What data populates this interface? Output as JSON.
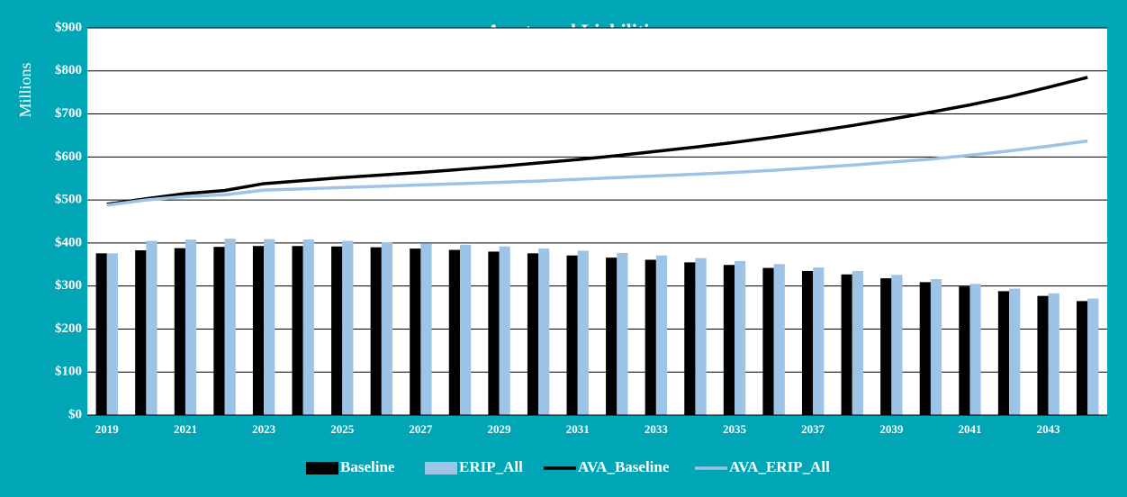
{
  "chart_data": {
    "type": "bar_line",
    "title": "Assets and Liabilities",
    "y_label": "Millions",
    "categories": [
      "2019",
      null,
      "2021",
      null,
      "2023",
      null,
      "2025",
      null,
      "2027",
      null,
      "2029",
      null,
      "2031",
      null,
      "2033",
      null,
      "2035",
      null,
      "2037",
      null,
      "2039",
      null,
      "2041",
      null,
      "2043",
      null
    ],
    "series": [
      {
        "name": "Baseline",
        "kind": "bar",
        "color": "#000000",
        "values": [
          376,
          383,
          388,
          391,
          393,
          393,
          392,
          390,
          387,
          384,
          380,
          376,
          371,
          366,
          361,
          355,
          349,
          342,
          335,
          327,
          318,
          309,
          299,
          288,
          277,
          265
        ]
      },
      {
        "name": "ERIP_All",
        "kind": "bar",
        "color": "#9dc3e6",
        "values": [
          376,
          405,
          408,
          410,
          409,
          408,
          405,
          402,
          399,
          396,
          392,
          387,
          382,
          377,
          371,
          365,
          358,
          351,
          343,
          335,
          326,
          316,
          305,
          294,
          283,
          271
        ]
      },
      {
        "name": "AVA_Baseline",
        "kind": "line",
        "color": "#000000",
        "values": [
          490,
          503,
          515,
          522,
          538,
          545,
          552,
          558,
          564,
          571,
          578,
          586,
          594,
          603,
          613,
          623,
          634,
          646,
          659,
          673,
          688,
          704,
          721,
          740,
          762,
          785
        ]
      },
      {
        "name": "AVA_ERIP_All",
        "kind": "line",
        "color": "#9dc3e6",
        "values": [
          488,
          500,
          508,
          512,
          523,
          526,
          529,
          532,
          535,
          538,
          541,
          544,
          548,
          552,
          556,
          560,
          564,
          569,
          575,
          581,
          588,
          595,
          604,
          614,
          625,
          637
        ]
      }
    ],
    "ylim": [
      0,
      900
    ],
    "yticks": [
      {
        "value": 0,
        "label": "$0"
      },
      {
        "value": 100,
        "label": "$100"
      },
      {
        "value": 200,
        "label": "$200"
      },
      {
        "value": 300,
        "label": "$300"
      },
      {
        "value": 400,
        "label": "$400"
      },
      {
        "value": 500,
        "label": "$500"
      },
      {
        "value": 600,
        "label": "$600"
      },
      {
        "value": 700,
        "label": "$700"
      },
      {
        "value": 800,
        "label": "$800"
      },
      {
        "value": 900,
        "label": "$900"
      }
    ],
    "grid": true,
    "legend": "bottom"
  }
}
